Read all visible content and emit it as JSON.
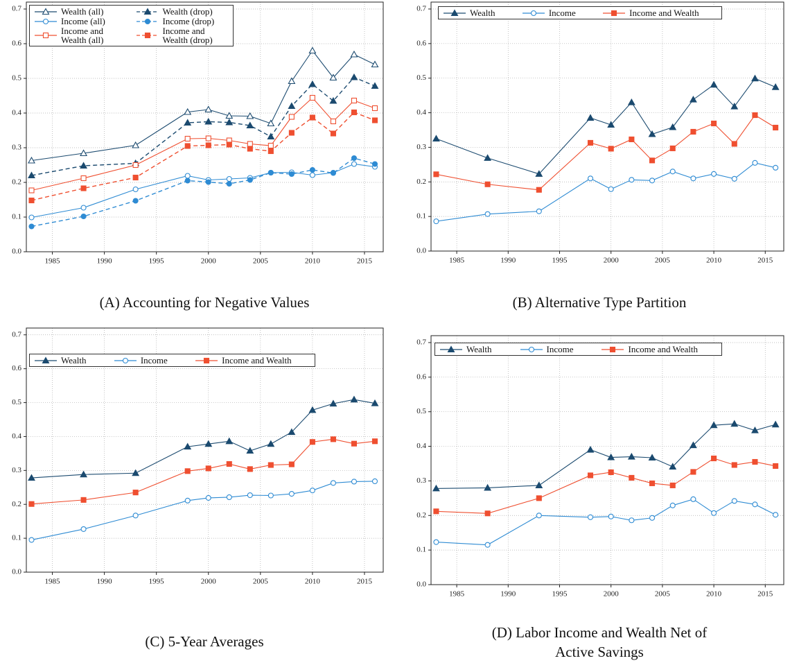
{
  "chart_data": [
    {
      "type": "line",
      "caption": "(A) Accounting for Negative Values",
      "x": [
        1983,
        1988,
        1993,
        1998,
        2000,
        2002,
        2004,
        2006,
        2008,
        2010,
        2012,
        2014,
        2016
      ],
      "xlim": [
        1982.5,
        2016.8
      ],
      "ylim": [
        0,
        0.72
      ],
      "xticks": [
        1985,
        1990,
        1995,
        2000,
        2005,
        2010,
        2015
      ],
      "yticks": [
        {
          "value": 0,
          "label": "0.0"
        },
        0.1,
        0.2,
        0.3,
        0.4,
        0.5,
        0.6,
        0.7
      ],
      "grid": true,
      "legend_loc": "upper left",
      "legend_columns": 2,
      "series": [
        {
          "name": "Wealth (all)",
          "color": "#1b4a6f",
          "marker": "triangle",
          "filled": false,
          "dashed": false,
          "values": [
            0.263,
            0.284,
            0.307,
            0.403,
            0.41,
            0.392,
            0.391,
            0.37,
            0.492,
            0.58,
            0.502,
            0.569,
            0.54
          ]
        },
        {
          "name": "Wealth (drop)",
          "color": "#1b4a6f",
          "marker": "triangle",
          "filled": true,
          "dashed": true,
          "values": [
            0.22,
            0.248,
            0.255,
            0.372,
            0.375,
            0.373,
            0.364,
            0.332,
            0.42,
            0.483,
            0.435,
            0.503,
            0.478
          ]
        },
        {
          "name": "Income (all)",
          "color": "#2e8bd3",
          "marker": "circle",
          "filled": false,
          "dashed": false,
          "values": [
            0.099,
            0.127,
            0.18,
            0.219,
            0.207,
            0.21,
            0.213,
            0.228,
            0.229,
            0.221,
            0.228,
            0.253,
            0.245
          ]
        },
        {
          "name": "Income (drop)",
          "color": "#2e8bd3",
          "marker": "circle",
          "filled": true,
          "dashed": true,
          "values": [
            0.073,
            0.102,
            0.147,
            0.205,
            0.201,
            0.196,
            0.207,
            0.228,
            0.224,
            0.236,
            0.227,
            0.27,
            0.253
          ]
        },
        {
          "name": "Income and Wealth (all)",
          "color": "#ef4f30",
          "marker": "square",
          "filled": false,
          "dashed": false,
          "values": [
            0.177,
            0.212,
            0.25,
            0.326,
            0.327,
            0.321,
            0.311,
            0.306,
            0.389,
            0.444,
            0.376,
            0.436,
            0.414
          ]
        },
        {
          "name": "Income and Wealth (drop)",
          "color": "#ef4f30",
          "marker": "square",
          "filled": true,
          "dashed": true,
          "values": [
            0.148,
            0.183,
            0.214,
            0.305,
            0.307,
            0.309,
            0.297,
            0.29,
            0.343,
            0.387,
            0.341,
            0.402,
            0.379
          ]
        }
      ]
    },
    {
      "type": "line",
      "caption": "(B) Alternative Type Partition",
      "x": [
        1983,
        1988,
        1993,
        1998,
        2000,
        2002,
        2004,
        2006,
        2008,
        2010,
        2012,
        2014,
        2016
      ],
      "xlim": [
        1982.5,
        2016.8
      ],
      "ylim": [
        0,
        0.72
      ],
      "xticks": [
        1985,
        1990,
        1995,
        2000,
        2005,
        2010,
        2015
      ],
      "yticks": [
        {
          "value": 0,
          "label": "0.0"
        },
        0.1,
        0.2,
        0.3,
        0.4,
        0.5,
        0.6,
        0.7
      ],
      "grid": true,
      "legend_loc": "upper left",
      "legend_columns": 3,
      "series": [
        {
          "name": "Wealth",
          "color": "#1b4a6f",
          "marker": "triangle",
          "filled": true,
          "dashed": false,
          "values": [
            0.325,
            0.269,
            0.223,
            0.385,
            0.365,
            0.43,
            0.338,
            0.358,
            0.438,
            0.481,
            0.418,
            0.499,
            0.474
          ]
        },
        {
          "name": "Income",
          "color": "#2e8bd3",
          "marker": "circle",
          "filled": false,
          "dashed": false,
          "values": [
            0.086,
            0.107,
            0.115,
            0.21,
            0.179,
            0.206,
            0.204,
            0.23,
            0.21,
            0.223,
            0.209,
            0.255,
            0.241
          ]
        },
        {
          "name": "Income and Wealth",
          "color": "#ef4f30",
          "marker": "square",
          "filled": true,
          "dashed": false,
          "values": [
            0.222,
            0.193,
            0.177,
            0.313,
            0.296,
            0.323,
            0.262,
            0.297,
            0.345,
            0.369,
            0.31,
            0.393,
            0.357
          ]
        }
      ]
    },
    {
      "type": "line",
      "caption": "(C) 5-Year Averages",
      "x": [
        1983,
        1988,
        1993,
        1998,
        2000,
        2002,
        2004,
        2006,
        2008,
        2010,
        2012,
        2014,
        2016
      ],
      "xlim": [
        1982.5,
        2016.8
      ],
      "ylim": [
        0,
        0.72
      ],
      "xticks": [
        1985,
        1990,
        1995,
        2000,
        2005,
        2010,
        2015
      ],
      "yticks": [
        {
          "value": 0,
          "label": "0.0"
        },
        0.1,
        0.2,
        0.3,
        0.4,
        0.5,
        0.6,
        0.7
      ],
      "grid": true,
      "legend_loc": "upper left",
      "legend_columns": 3,
      "series": [
        {
          "name": "Wealth",
          "color": "#1b4a6f",
          "marker": "triangle",
          "filled": true,
          "dashed": false,
          "values": [
            0.278,
            0.288,
            0.292,
            0.37,
            0.378,
            0.386,
            0.358,
            0.378,
            0.413,
            0.478,
            0.497,
            0.509,
            0.498
          ]
        },
        {
          "name": "Income",
          "color": "#2e8bd3",
          "marker": "circle",
          "filled": false,
          "dashed": false,
          "values": [
            0.095,
            0.127,
            0.167,
            0.211,
            0.219,
            0.221,
            0.227,
            0.226,
            0.231,
            0.241,
            0.263,
            0.267,
            0.268
          ]
        },
        {
          "name": "Income and Wealth",
          "color": "#ef4f30",
          "marker": "square",
          "filled": true,
          "dashed": false,
          "values": [
            0.201,
            0.213,
            0.235,
            0.298,
            0.306,
            0.319,
            0.304,
            0.316,
            0.318,
            0.384,
            0.392,
            0.379,
            0.386
          ]
        }
      ]
    },
    {
      "type": "line",
      "caption": "(D) Labor Income and Wealth Net of Active Savings",
      "x": [
        1983,
        1988,
        1993,
        1998,
        2000,
        2002,
        2004,
        2006,
        2008,
        2010,
        2012,
        2014,
        2016
      ],
      "xlim": [
        1982.5,
        2016.8
      ],
      "ylim": [
        0,
        0.72
      ],
      "xticks": [
        1985,
        1990,
        1995,
        2000,
        2005,
        2010,
        2015
      ],
      "yticks": [
        {
          "value": 0,
          "label": "0.0"
        },
        0.1,
        0.2,
        0.3,
        0.4,
        0.5,
        0.6,
        0.7
      ],
      "grid": true,
      "legend_loc": "upper left",
      "legend_columns": 3,
      "series": [
        {
          "name": "Wealth",
          "color": "#1b4a6f",
          "marker": "triangle",
          "filled": true,
          "dashed": false,
          "values": [
            0.278,
            0.28,
            0.287,
            0.39,
            0.368,
            0.37,
            0.367,
            0.341,
            0.403,
            0.461,
            0.465,
            0.446,
            0.463
          ]
        },
        {
          "name": "Income",
          "color": "#2e8bd3",
          "marker": "circle",
          "filled": false,
          "dashed": false,
          "values": [
            0.123,
            0.115,
            0.2,
            0.195,
            0.197,
            0.186,
            0.193,
            0.229,
            0.247,
            0.207,
            0.242,
            0.232,
            0.202
          ]
        },
        {
          "name": "Income and Wealth",
          "color": "#ef4f30",
          "marker": "square",
          "filled": true,
          "dashed": false,
          "values": [
            0.212,
            0.206,
            0.25,
            0.316,
            0.325,
            0.309,
            0.293,
            0.287,
            0.326,
            0.365,
            0.346,
            0.355,
            0.343
          ]
        }
      ]
    }
  ]
}
